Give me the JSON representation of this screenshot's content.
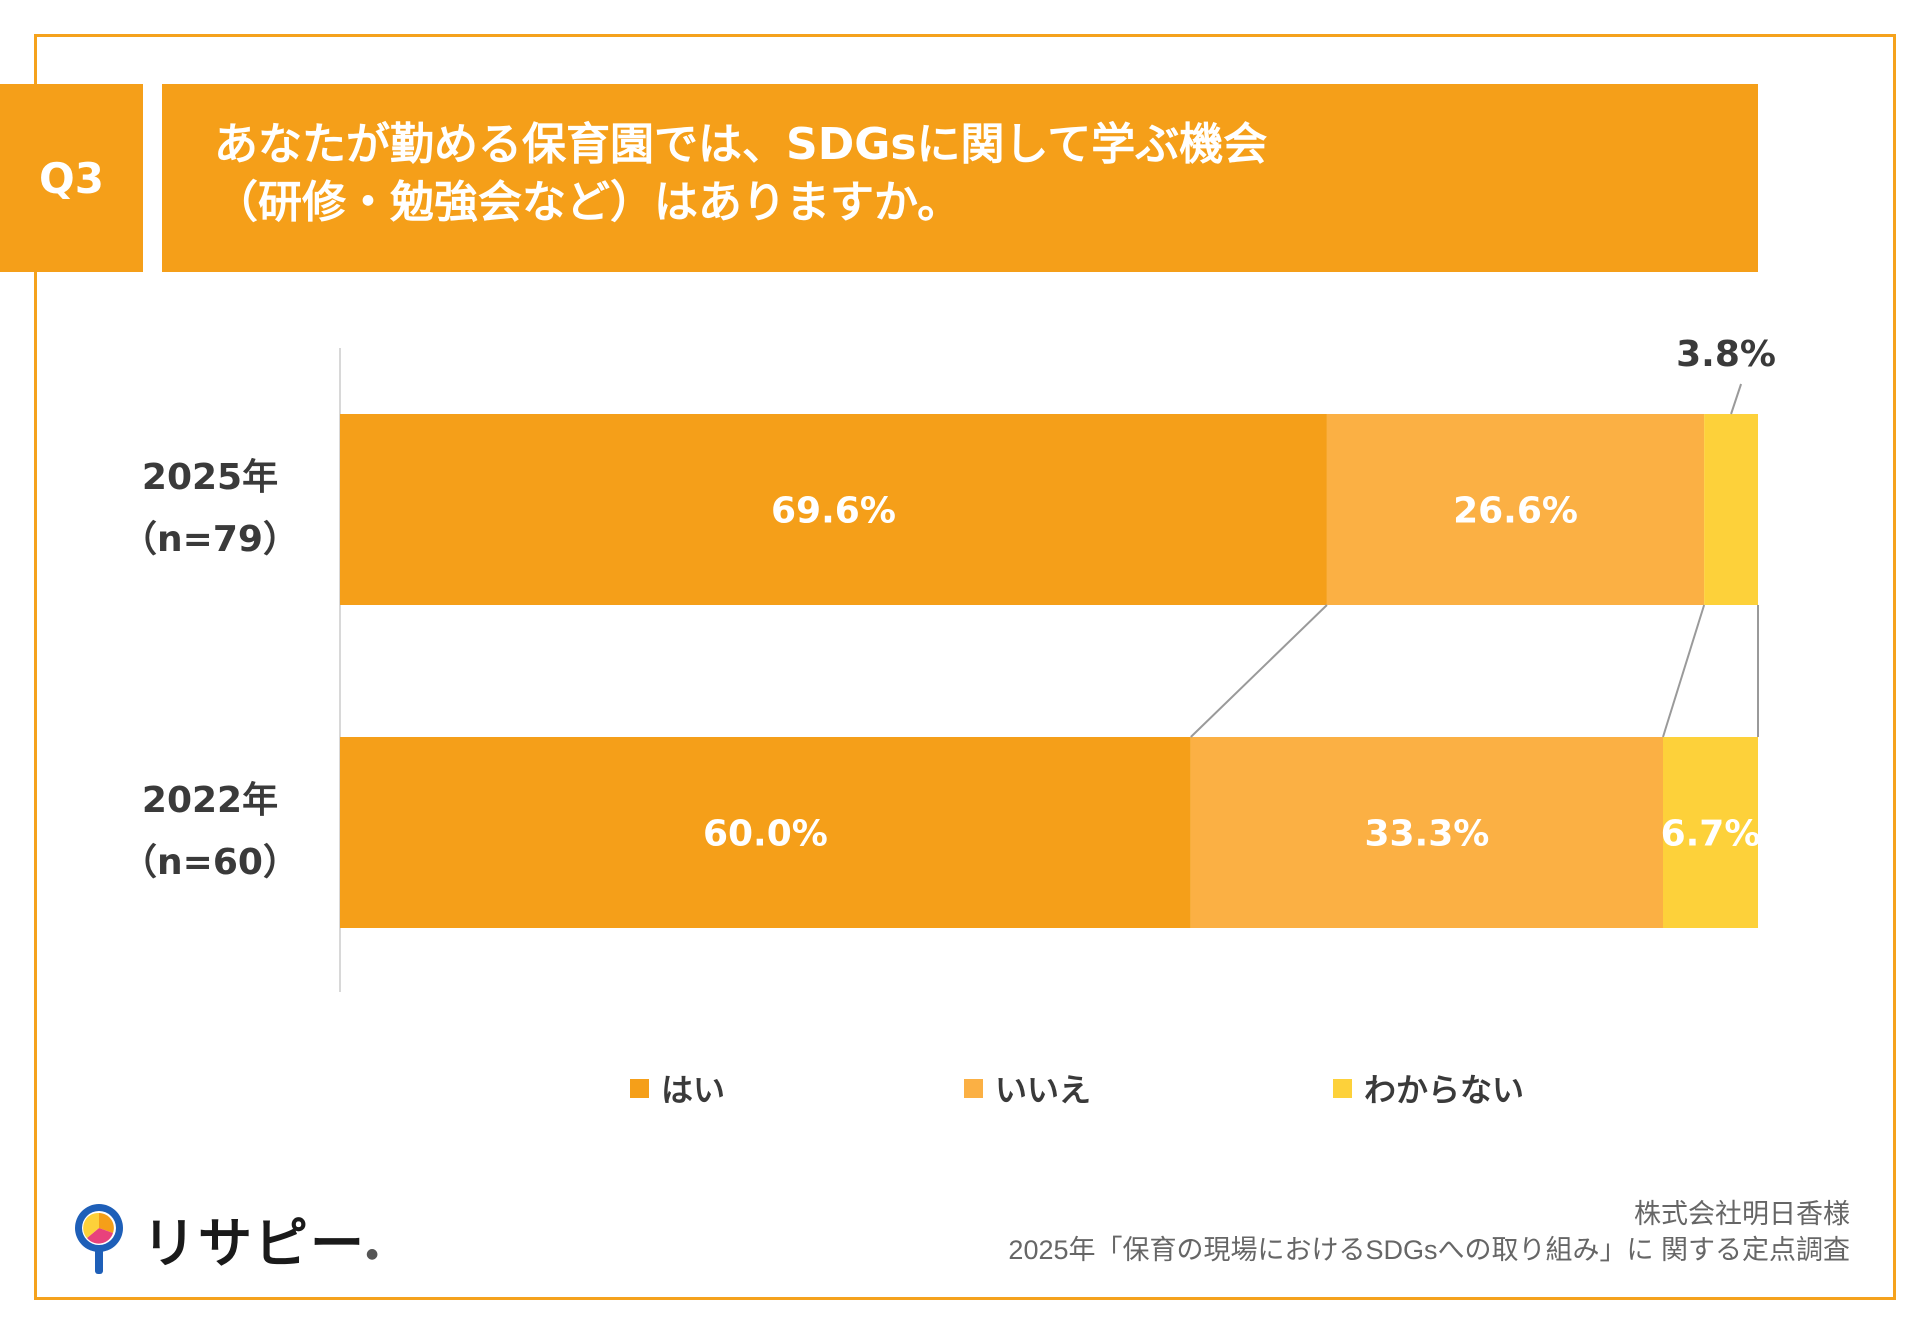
{
  "question": {
    "number": "Q3",
    "title_line1": "あなたが勤める保育園では、SDGsに関して学ぶ機会",
    "title_line2": "（研修・勉強会など）はありますか。"
  },
  "colors": {
    "accent": "#f59f19",
    "yes": "#f59f19",
    "no": "#fbb044",
    "unknown": "#fdd13a",
    "connector": "#9a9a9a",
    "axis": "#d8d8d8"
  },
  "chart_data": {
    "type": "bar",
    "orientation": "horizontal",
    "stacked": true,
    "normalized_percent": true,
    "categories": [
      {
        "year": "2025年",
        "n": "（n=79）"
      },
      {
        "year": "2022年",
        "n": "（n=60）"
      }
    ],
    "series": [
      {
        "name": "はい",
        "values": [
          69.6,
          60.0
        ],
        "labels": [
          "69.6%",
          "60.0%"
        ],
        "color": "#f59f19"
      },
      {
        "name": "いいえ",
        "values": [
          26.6,
          33.3
        ],
        "labels": [
          "26.6%",
          "33.3%"
        ],
        "color": "#fbb044"
      },
      {
        "name": "わからない",
        "values": [
          3.8,
          6.7
        ],
        "labels": [
          "3.8%",
          "6.7%"
        ],
        "color": "#fdd13a"
      }
    ],
    "xlim": [
      0,
      100
    ],
    "legend": "bottom",
    "grid": false
  },
  "logo": {
    "text": "リサピー",
    "icon": "pin-icon"
  },
  "footer": {
    "line1": "株式会社明日香様",
    "line2": "2025年「保育の現場におけるSDGsへの取り組み」に 関する定点調査"
  }
}
